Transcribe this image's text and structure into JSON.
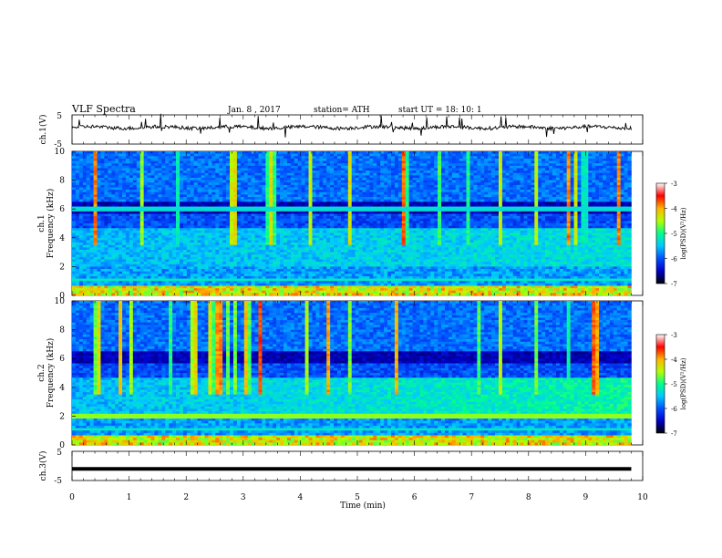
{
  "header": {
    "title": "VLF Spectra",
    "date": "Jan. 8 , 2017",
    "station": "station= ATH",
    "start": "start UT = 18: 10: 1"
  },
  "chart_data": [
    {
      "type": "line",
      "name": "ch.1 voltage",
      "ylabel": "ch.1(V)",
      "ylim": [
        -5,
        5
      ],
      "yticks": [
        "5",
        "-5"
      ],
      "xlim": [
        0,
        10
      ],
      "baseline": 0.7
    },
    {
      "type": "heatmap",
      "name": "ch.1 spectrogram",
      "ylabel_top": "ch.1",
      "ylabel": "Frequency (kHz)",
      "ylim": [
        0,
        10
      ],
      "yticks": [
        "0",
        "2",
        "4",
        "6",
        "8",
        "10"
      ],
      "xlim": [
        0,
        9.8
      ],
      "colorbar": {
        "label": "log(PSD)(V²/Hz)",
        "range": [
          -7,
          -3
        ],
        "ticks": [
          "-3",
          "-4",
          "-5",
          "-6",
          "-7"
        ]
      }
    },
    {
      "type": "heatmap",
      "name": "ch.2 spectrogram",
      "ylabel_top": "ch.2",
      "ylabel": "Frequency (kHz)",
      "ylim": [
        0,
        10
      ],
      "yticks": [
        "0",
        "2",
        "4",
        "6",
        "8",
        "10"
      ],
      "xlim": [
        0,
        9.8
      ],
      "colorbar": {
        "label": "log(PSD)(V²/Hz)",
        "range": [
          -7,
          -3
        ],
        "ticks": [
          "-3",
          "-4",
          "-5",
          "-6",
          "-7"
        ]
      }
    },
    {
      "type": "line",
      "name": "ch.3 voltage",
      "ylabel": "ch.3(V)",
      "ylim": [
        -5,
        5
      ],
      "yticks": [
        "5",
        "-5"
      ],
      "xlim": [
        0,
        10
      ],
      "baseline": -1.0
    }
  ],
  "xaxis": {
    "label": "Time (min)",
    "ticks": [
      "0",
      "1",
      "2",
      "3",
      "4",
      "5",
      "6",
      "7",
      "8",
      "9",
      "10"
    ],
    "range": [
      0,
      10
    ]
  },
  "colors": {
    "background": "#ffffff",
    "trace": "#000000",
    "colormap": [
      "#000000",
      "#0000c8",
      "#0050ff",
      "#00c8ff",
      "#00ff8c",
      "#b4ff00",
      "#ffb400",
      "#ff0000",
      "#ffffff"
    ]
  }
}
